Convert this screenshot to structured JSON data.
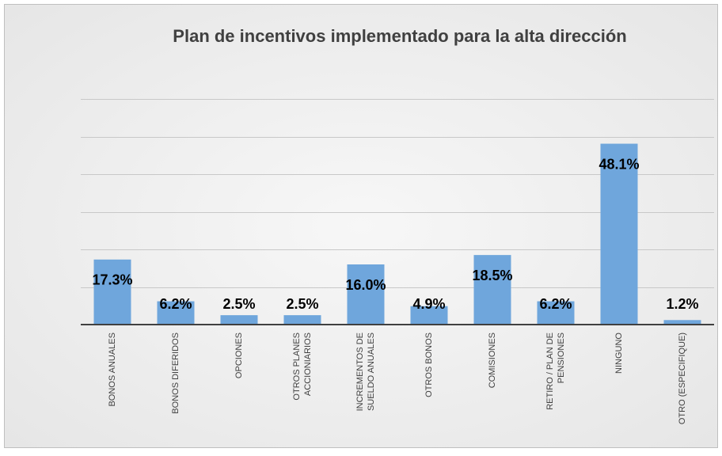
{
  "chart_data": {
    "type": "bar",
    "title": "Plan de incentivos implementado para la alta dirección",
    "categories": [
      "BONOS ANUALES",
      "BONOS DIFERIDOS",
      "OPCIONES",
      "OTROS PLANES ACCIONIARIOS",
      "INCREMENTOS DE SUELDO ANUALES",
      "OTROS BONOS",
      "COMISIONES",
      "RETIRO / PLAN DE PENSIONES",
      "NINGUNO",
      "OTRO (ESPECIFIQUE)"
    ],
    "values": [
      17.3,
      6.2,
      2.5,
      2.5,
      16.0,
      4.9,
      18.5,
      6.2,
      48.1,
      1.2
    ],
    "value_labels": [
      "17.3%",
      "6.2%",
      "2.5%",
      "2.5%",
      "16.0%",
      "4.9%",
      "18.5%",
      "6.2%",
      "48.1%",
      "1.2%"
    ],
    "color": "#6fa6dc",
    "ylim": [
      0,
      60
    ],
    "yticks": [
      0,
      10,
      20,
      30,
      40,
      50,
      60
    ],
    "grid": true
  }
}
